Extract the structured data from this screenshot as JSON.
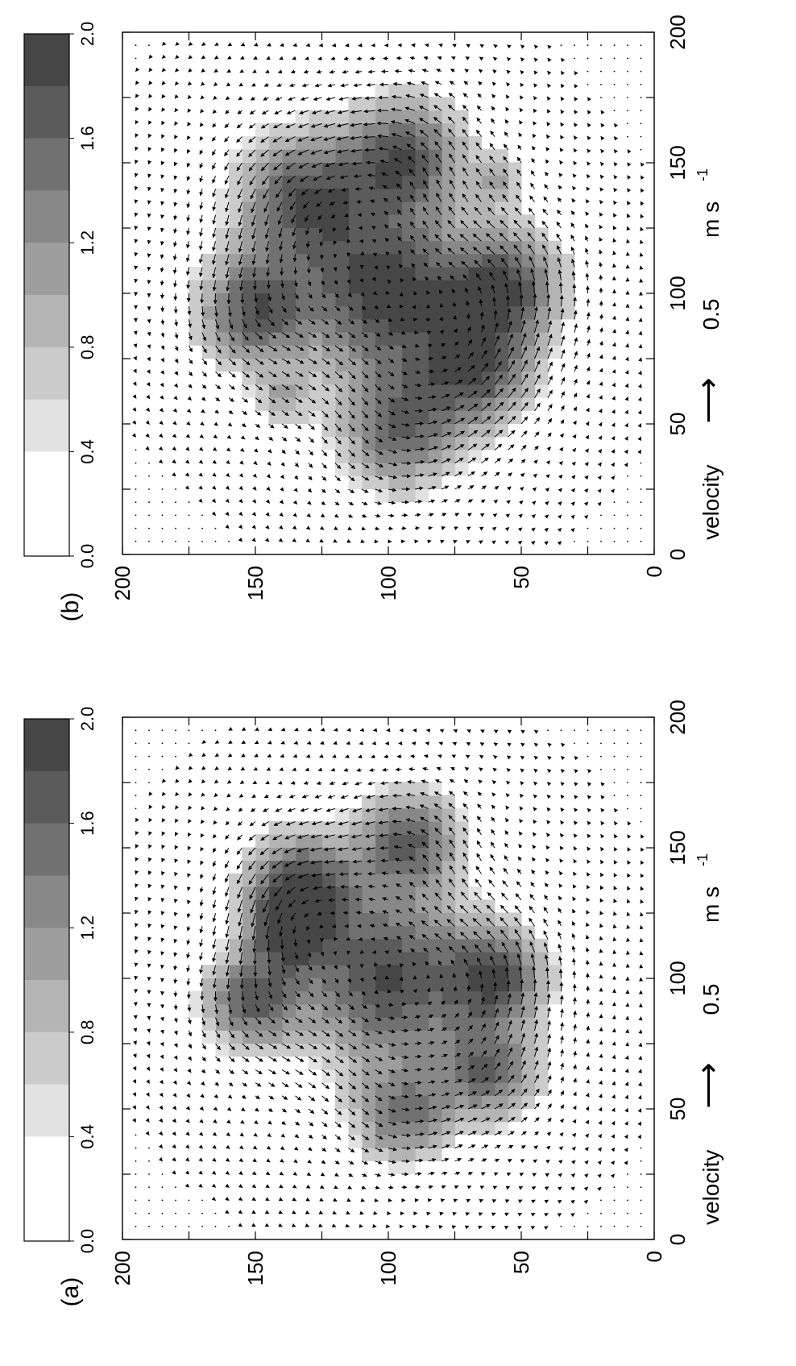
{
  "figure": {
    "orientation": "rotated-90-ccw"
  },
  "chart_data": [
    {
      "id": "a",
      "panel_label": "(a)",
      "type": "vector-field-with-shading",
      "axes": {
        "x_ticks": [
          "0",
          "50",
          "100",
          "150",
          "200"
        ],
        "y_ticks": [
          "0",
          "50",
          "100",
          "150",
          "200"
        ],
        "xlim": [
          0,
          200
        ],
        "ylim": [
          0,
          200
        ],
        "minor_tick_step": 25,
        "grid": false
      },
      "colorbar": {
        "ticks": [
          "0.0",
          "0.4",
          "0.8",
          "1.2",
          "1.6",
          "2.0"
        ],
        "range": [
          0,
          2
        ],
        "colors": [
          "#ffffff",
          "#e2e2e2",
          "#cbcbcb",
          "#b4b4b4",
          "#9e9e9e",
          "#888888",
          "#717171",
          "#5b5b5b",
          "#464646"
        ],
        "cutoff": 0.4
      },
      "velocity_key": {
        "label": "velocity",
        "arrow": "⟶",
        "value": "0.5",
        "unit": "m s",
        "unit_exponent": "-1"
      },
      "vortices": [
        {
          "x": 100,
          "y": 100,
          "r": 32,
          "amp": 1.8
        },
        {
          "x": 153,
          "y": 92,
          "r": 18,
          "amp": 1.5
        },
        {
          "x": 136,
          "y": 133,
          "r": 19,
          "amp": 1.7
        },
        {
          "x": 91,
          "y": 152,
          "r": 17,
          "amp": 1.5
        },
        {
          "x": 47,
          "y": 95,
          "r": 17,
          "amp": 1.3
        },
        {
          "x": 64,
          "y": 62,
          "r": 18,
          "amp": 1.4
        },
        {
          "x": 101,
          "y": 58,
          "r": 17,
          "amp": 1.5
        },
        {
          "x": 118,
          "y": 138,
          "r": 14,
          "amp": 1.3
        }
      ]
    },
    {
      "id": "b",
      "panel_label": "(b)",
      "type": "vector-field-with-shading",
      "axes": {
        "x_ticks": [
          "0",
          "50",
          "100",
          "150",
          "200"
        ],
        "y_ticks": [
          "0",
          "50",
          "100",
          "150",
          "200"
        ],
        "xlim": [
          0,
          200
        ],
        "ylim": [
          0,
          200
        ],
        "minor_tick_step": 25,
        "grid": false
      },
      "colorbar": {
        "ticks": [
          "0.0",
          "0.4",
          "0.8",
          "1.2",
          "1.6",
          "2.0"
        ],
        "range": [
          0,
          2
        ],
        "colors": [
          "#ffffff",
          "#e2e2e2",
          "#cbcbcb",
          "#b4b4b4",
          "#9e9e9e",
          "#888888",
          "#717171",
          "#5b5b5b",
          "#464646"
        ],
        "cutoff": 0.4
      },
      "velocity_key": {
        "label": "velocity",
        "arrow": "⟶",
        "value": "0.5",
        "unit": "m s",
        "unit_exponent": "-1"
      },
      "vortices": [
        {
          "x": 100,
          "y": 100,
          "r": 30,
          "amp": 1.9
        },
        {
          "x": 153,
          "y": 93,
          "r": 21,
          "amp": 1.6
        },
        {
          "x": 137,
          "y": 132,
          "r": 24,
          "amp": 1.6
        },
        {
          "x": 93,
          "y": 151,
          "r": 20,
          "amp": 1.6
        },
        {
          "x": 47,
          "y": 96,
          "r": 22,
          "amp": 1.4
        },
        {
          "x": 70,
          "y": 66,
          "r": 20,
          "amp": 1.5
        },
        {
          "x": 103,
          "y": 55,
          "r": 20,
          "amp": 1.6
        },
        {
          "x": 143,
          "y": 58,
          "r": 10,
          "amp": 0.7
        },
        {
          "x": 60,
          "y": 140,
          "r": 10,
          "amp": 0.7
        }
      ]
    }
  ]
}
